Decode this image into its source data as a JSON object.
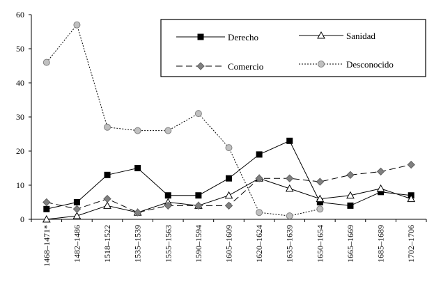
{
  "chart_data": {
    "type": "line",
    "categories": [
      "1468–1471*",
      "1482–1486",
      "1518–1522",
      "1535–1539",
      "1555–1563",
      "1590–1594",
      "1605–1609",
      "1620–1624",
      "1635–1639",
      "1650–1654",
      "1665–1669",
      "1685–1689",
      "1702–1706"
    ],
    "yticks": [
      "0",
      "10",
      "20",
      "30",
      "40",
      "50",
      "60"
    ],
    "ylim": [
      0,
      60
    ],
    "grid": false,
    "legend_position": "top-right",
    "series": [
      {
        "name": "Derecho",
        "marker": "square",
        "line": "solid",
        "color": "#000000",
        "values": [
          3,
          5,
          13,
          15,
          7,
          7,
          12,
          19,
          23,
          5,
          4,
          8,
          7
        ]
      },
      {
        "name": "Sanidad",
        "marker": "triangle",
        "line": "solid",
        "color": "#000000",
        "values": [
          0,
          1,
          4,
          2,
          5,
          4,
          7,
          12,
          9,
          6,
          7,
          9,
          6
        ]
      },
      {
        "name": "Comercio",
        "marker": "diamond",
        "line": "dashed",
        "color": "#808080",
        "values": [
          5,
          3,
          6,
          2,
          4,
          4,
          4,
          12,
          12,
          11,
          13,
          14,
          16
        ]
      },
      {
        "name": "Desconocido",
        "marker": "circle",
        "line": "dotted",
        "color": "#c0c0c0",
        "values": [
          46,
          57,
          27,
          26,
          26,
          31,
          21,
          2,
          1,
          3,
          null,
          null,
          null
        ]
      }
    ]
  }
}
